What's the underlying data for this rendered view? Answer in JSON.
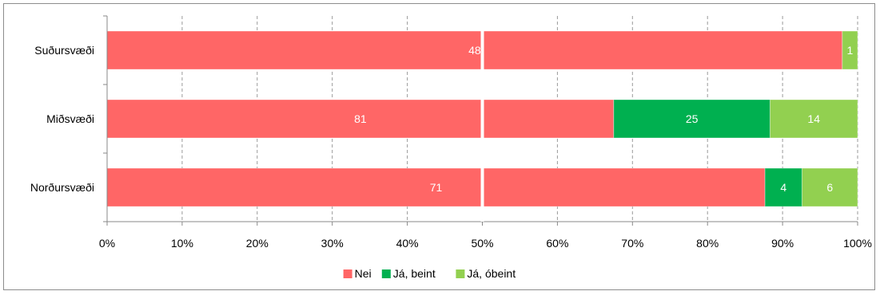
{
  "chart_data": {
    "type": "bar",
    "orientation": "horizontal",
    "stacked": "percent",
    "categories": [
      "Suðursvæði",
      "Miðsvæði",
      "Norðursvæði"
    ],
    "series": [
      {
        "name": "Nei",
        "values": [
          48,
          81,
          71
        ],
        "color": "#ff6666"
      },
      {
        "name": "Já, beint",
        "values": [
          0,
          25,
          4
        ],
        "color": "#00b050"
      },
      {
        "name": "Já, óbeint",
        "values": [
          1,
          14,
          6
        ],
        "color": "#92d050"
      }
    ],
    "xticks": [
      "0%",
      "10%",
      "20%",
      "30%",
      "40%",
      "50%",
      "60%",
      "70%",
      "80%",
      "90%",
      "100%"
    ],
    "xlim": [
      0,
      100
    ],
    "grid": true,
    "legend_position": "bottom"
  }
}
